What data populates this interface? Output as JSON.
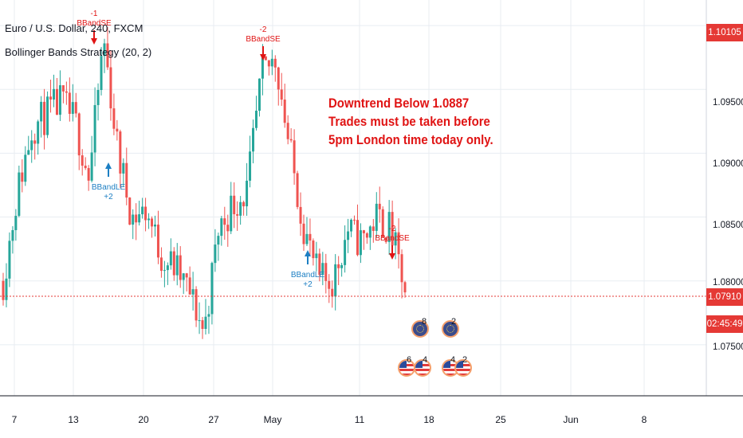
{
  "header": {
    "symbol_line": "Euro / U.S. Dollar, 240, FXCM",
    "strategy_line": "Bollinger Bands Strategy (20, 2)"
  },
  "annotation": {
    "line1": "Downtrend Below 1.0887",
    "line2": "Trades must be taken before",
    "line3": "5pm London time today only."
  },
  "price_axis": {
    "labels": [
      "1.09500",
      "1.09000",
      "1.08500",
      "1.08000",
      "1.07500"
    ],
    "top_price_badge": "1.10105",
    "current_price_badge": "1.07910",
    "countdown_badge": "02:45:49"
  },
  "time_axis": {
    "labels": [
      "7",
      "13",
      "20",
      "27",
      "May",
      "11",
      "18",
      "25",
      "Jun",
      "8"
    ]
  },
  "colors": {
    "up_candle": "#26a69a",
    "down_candle": "#ef5350",
    "sell_signal": "#e01414",
    "buy_signal": "#1d7fc3",
    "price_line": "#e53935",
    "countdown_bg": "#2a2e39"
  },
  "chart_data": {
    "type": "candlestick",
    "ylim": [
      1.071,
      1.102
    ],
    "x": [
      "Apr 6",
      "Apr 7",
      "Apr 8",
      "Apr 9",
      "Apr 10",
      "Apr 13",
      "Apr 14",
      "Apr 15",
      "Apr 16",
      "Apr 17",
      "Apr 20",
      "Apr 21",
      "Apr 22",
      "Apr 23",
      "Apr 24",
      "Apr 27",
      "Apr 28",
      "Apr 29",
      "Apr 30",
      "May 1",
      "May 4",
      "May 5",
      "May 6",
      "May 7",
      "May 8",
      "May 11",
      "May 12",
      "May 13",
      "May 14"
    ],
    "close_path": [
      1.08,
      1.087,
      1.092,
      1.093,
      1.094,
      1.0925,
      1.088,
      1.099,
      1.09,
      1.085,
      1.0855,
      1.082,
      1.081,
      1.079,
      1.076,
      1.084,
      1.086,
      1.087,
      1.096,
      1.0975,
      1.09,
      1.084,
      1.08,
      1.08,
      1.084,
      1.083,
      1.085,
      1.084,
      1.0791
    ],
    "last_price": 1.0791,
    "signals": [
      {
        "type": "sell",
        "label": "BBandSE",
        "qty": "-1",
        "date": "Apr 15"
      },
      {
        "type": "buy",
        "label": "BBandLE",
        "qty": "+2",
        "date": "Apr 16"
      },
      {
        "type": "sell",
        "label": "BBandSE",
        "qty": "-2",
        "date": "Apr 30"
      },
      {
        "type": "buy",
        "label": "BBandLE",
        "qty": "+2",
        "date": "May 5"
      },
      {
        "type": "sell",
        "label": "BBandSE",
        "qty": "-2",
        "date": "May 13"
      }
    ],
    "events": [
      {
        "count": "8",
        "flag": "eu"
      },
      {
        "count": "2",
        "flag": "eu"
      },
      {
        "count": "6",
        "flag": "us"
      },
      {
        "count": "4",
        "flag": "us"
      },
      {
        "count": "4",
        "flag": "us"
      },
      {
        "count": "2",
        "flag": "us"
      }
    ]
  }
}
